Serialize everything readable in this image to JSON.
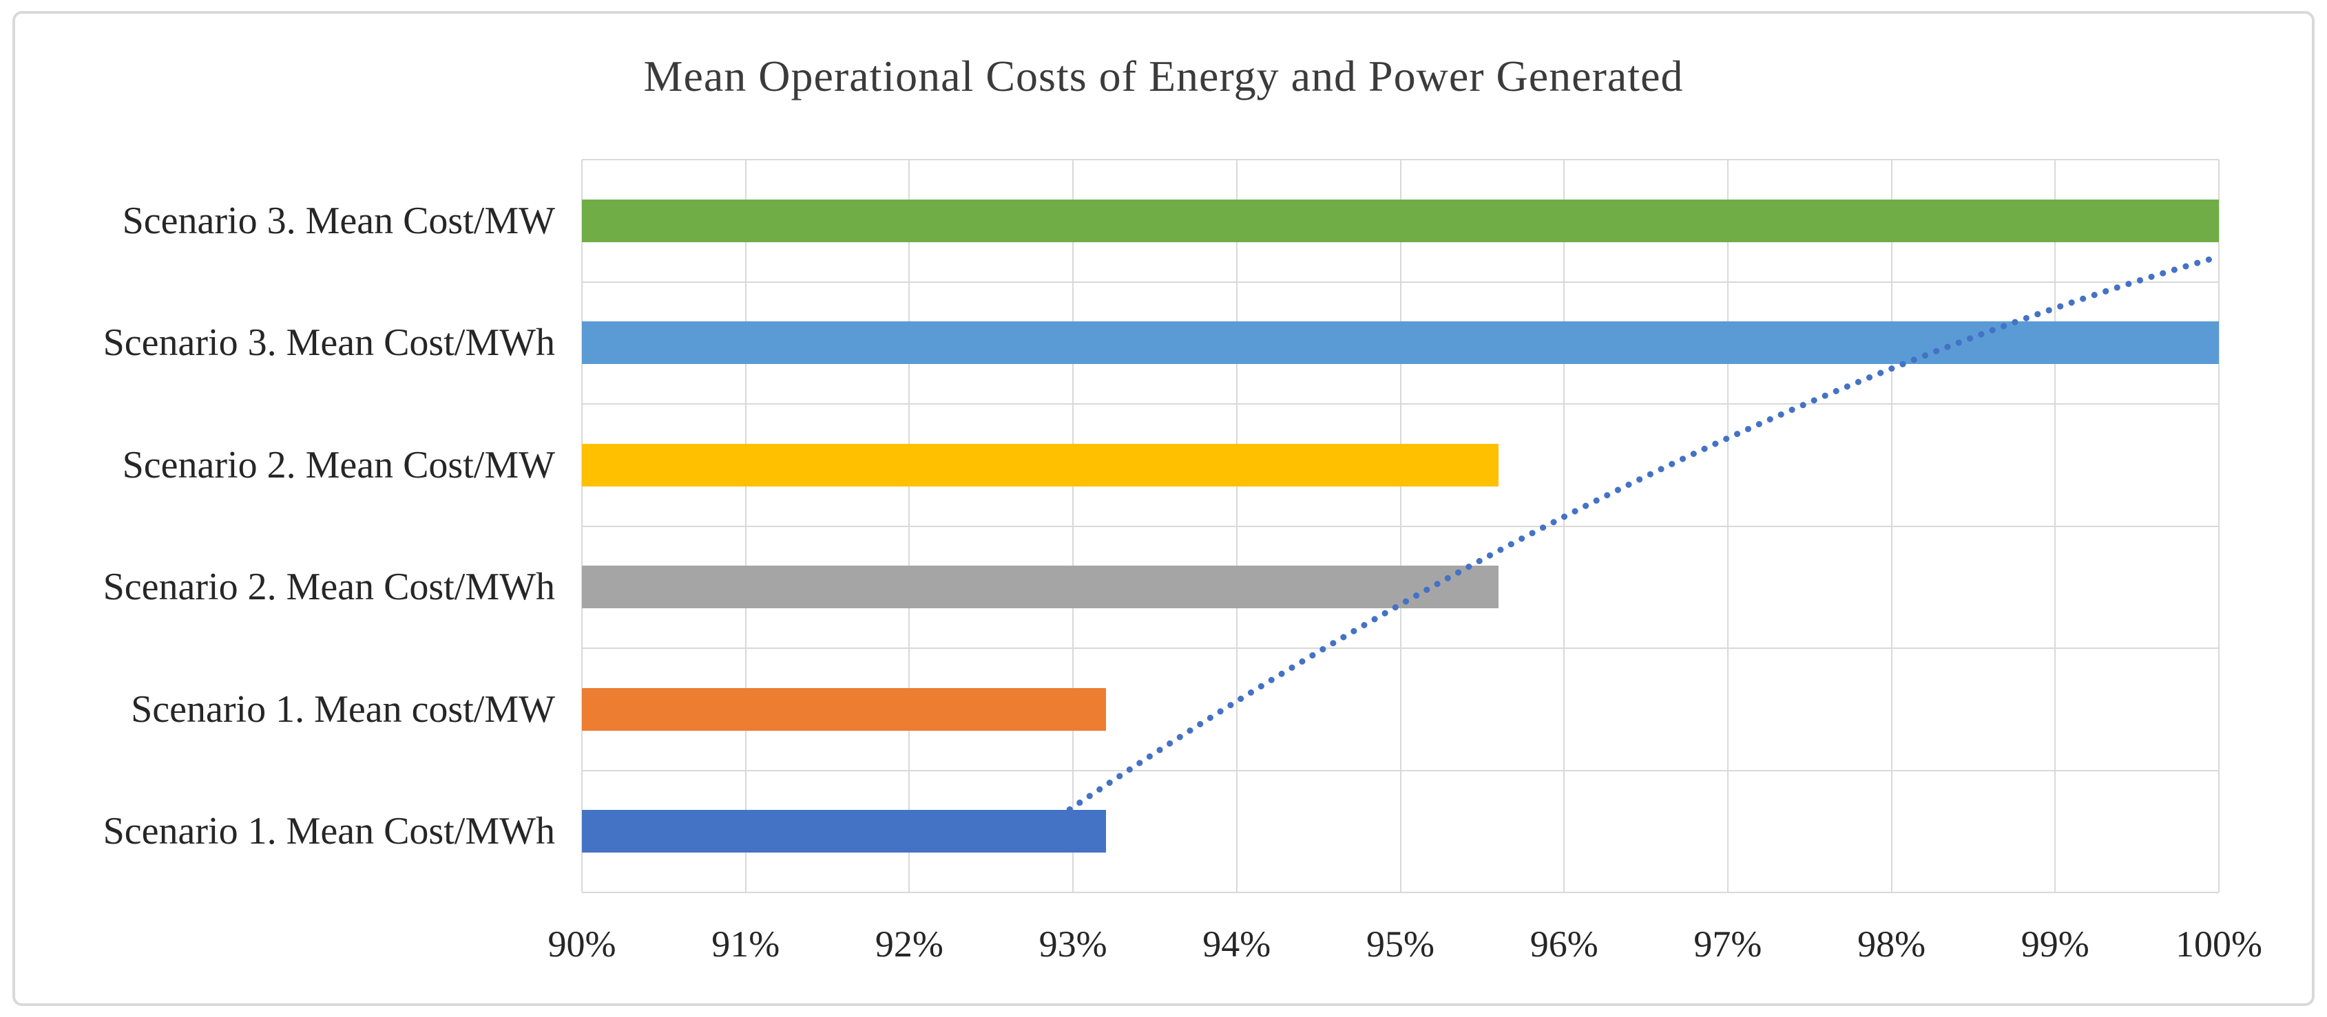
{
  "chart_data": {
    "type": "bar",
    "orientation": "horizontal",
    "title": "Mean Operational Costs of Energy and Power Generated",
    "categories": [
      "Scenario 3. Mean Cost/MW",
      "Scenario 3. Mean Cost/MWh",
      "Scenario 2. Mean Cost/MW",
      "Scenario 2. Mean Cost/MWh",
      "Scenario 1. Mean cost/MW",
      "Scenario 1. Mean Cost/MWh"
    ],
    "values": [
      100.0,
      100.0,
      95.6,
      95.6,
      93.2,
      93.2
    ],
    "value_unit": "%",
    "bar_colors": [
      "#70AD47",
      "#5B9BD5",
      "#FFC000",
      "#A5A5A5",
      "#ED7D31",
      "#4472C4"
    ],
    "xlim": [
      90,
      100
    ],
    "x_tick_step": 1,
    "x_tick_labels": [
      "90%",
      "91%",
      "92%",
      "93%",
      "94%",
      "95%",
      "96%",
      "97%",
      "98%",
      "99%",
      "100%"
    ],
    "grid": true,
    "legend": "none",
    "trendline": {
      "style": "dotted",
      "color": "#4472C4",
      "description": "dotted curved line rising from ~93% at bottom category band to ~100% near top category band",
      "path_points": {
        "start": [
          92.98,
          5.32
        ],
        "control": [
          96.47,
          2.16
        ],
        "end": [
          99.96,
          0.81
        ]
      }
    }
  },
  "colors": {
    "background": "#FFFFFF",
    "frame_border": "#D9D9D9",
    "gridline": "#D9D9D9",
    "title_text": "#3B3B3B",
    "axis_text": "#262626",
    "trendline": "#4472C4"
  }
}
